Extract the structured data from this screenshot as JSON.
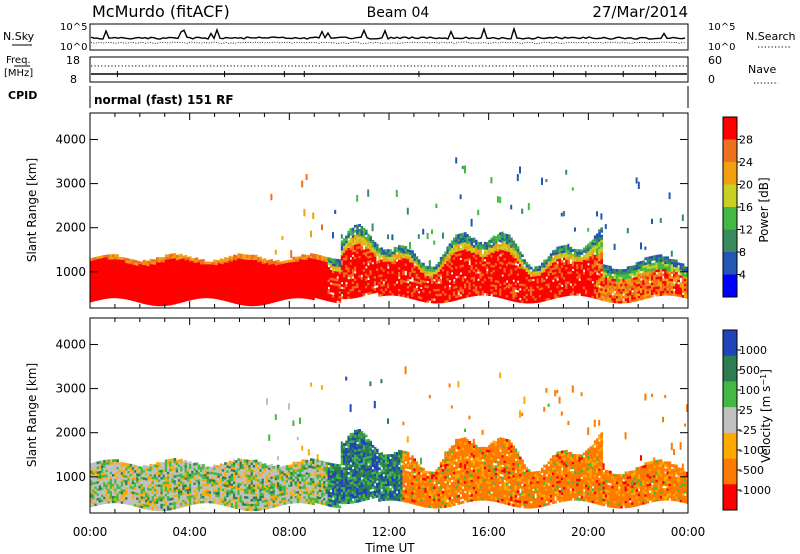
{
  "header": {
    "station": "McMurdo (fitACF)",
    "beam": "Beam 04",
    "date": "27/Mar/2014",
    "cpid_label": "CPID",
    "cpid_value": "normal (fast) 151 RF"
  },
  "noise_panel": {
    "left_label": "N.Sky",
    "right_label": "N.Search",
    "left_ticks": [
      "10^5",
      "10^0"
    ],
    "right_ticks": [
      "10^5",
      "10^0"
    ]
  },
  "freq_panel": {
    "left_label_top": "Freq.",
    "left_label_bottom": "[MHz]",
    "right_label": "Nave",
    "left_ticks": [
      "18",
      "8"
    ],
    "right_ticks": [
      "60",
      "0"
    ]
  },
  "colors": {
    "power": [
      "#0000ff",
      "#2457b4",
      "#3a8a60",
      "#44b844",
      "#c8d024",
      "#f0a010",
      "#f07020",
      "#ff0000"
    ],
    "velocity": [
      "#2244bb",
      "#2c7e52",
      "#44b844",
      "#c0c0c0",
      "#ffaa00",
      "#ff7a00",
      "#ff0000"
    ]
  },
  "chart_data": [
    {
      "type": "heatmap",
      "xlabel": "",
      "ylabel": "Slant Range [km]",
      "x_range": [
        "00:00",
        "24:00"
      ],
      "ylim": [
        180,
        4600
      ],
      "yticks": [
        1000,
        2000,
        3000,
        4000
      ],
      "colorbar": {
        "label": "Power [dB]",
        "range": [
          0,
          32
        ],
        "ticks": [
          "4",
          "8",
          "12",
          "16",
          "20",
          "24",
          "28"
        ]
      },
      "regions": [
        {
          "x": [
            "00:00",
            "10:00"
          ],
          "range_km": [
            300,
            1400
          ],
          "value_db": 30
        },
        {
          "x": [
            "09:30",
            "20:30"
          ],
          "range_km": [
            400,
            1600
          ],
          "value_db": 26
        },
        {
          "x": [
            "20:30",
            "24:00"
          ],
          "range_km": [
            500,
            1400
          ],
          "value_db": 20
        }
      ]
    },
    {
      "type": "heatmap",
      "xlabel": "Time UT",
      "ylabel": "Slant Range [km]",
      "x_range": [
        "00:00",
        "24:00"
      ],
      "xticks": [
        "00:00",
        "04:00",
        "08:00",
        "12:00",
        "16:00",
        "20:00",
        "00:00"
      ],
      "ylim": [
        180,
        4600
      ],
      "yticks": [
        1000,
        2000,
        3000,
        4000
      ],
      "colorbar": {
        "label": "Velocity [m s^-1]",
        "ticks": [
          "1000",
          "500",
          "100",
          "25",
          "-25",
          "-100",
          "-500",
          "-1000"
        ]
      },
      "regions": [
        {
          "x": [
            "00:00",
            "10:00"
          ],
          "range_km": [
            300,
            1400
          ],
          "velocity": 25
        },
        {
          "x": [
            "10:00",
            "13:00"
          ],
          "range_km": [
            400,
            1500
          ],
          "velocity": 100
        },
        {
          "x": [
            "13:00",
            "24:00"
          ],
          "range_km": [
            400,
            1600
          ],
          "velocity": -150
        }
      ]
    }
  ]
}
